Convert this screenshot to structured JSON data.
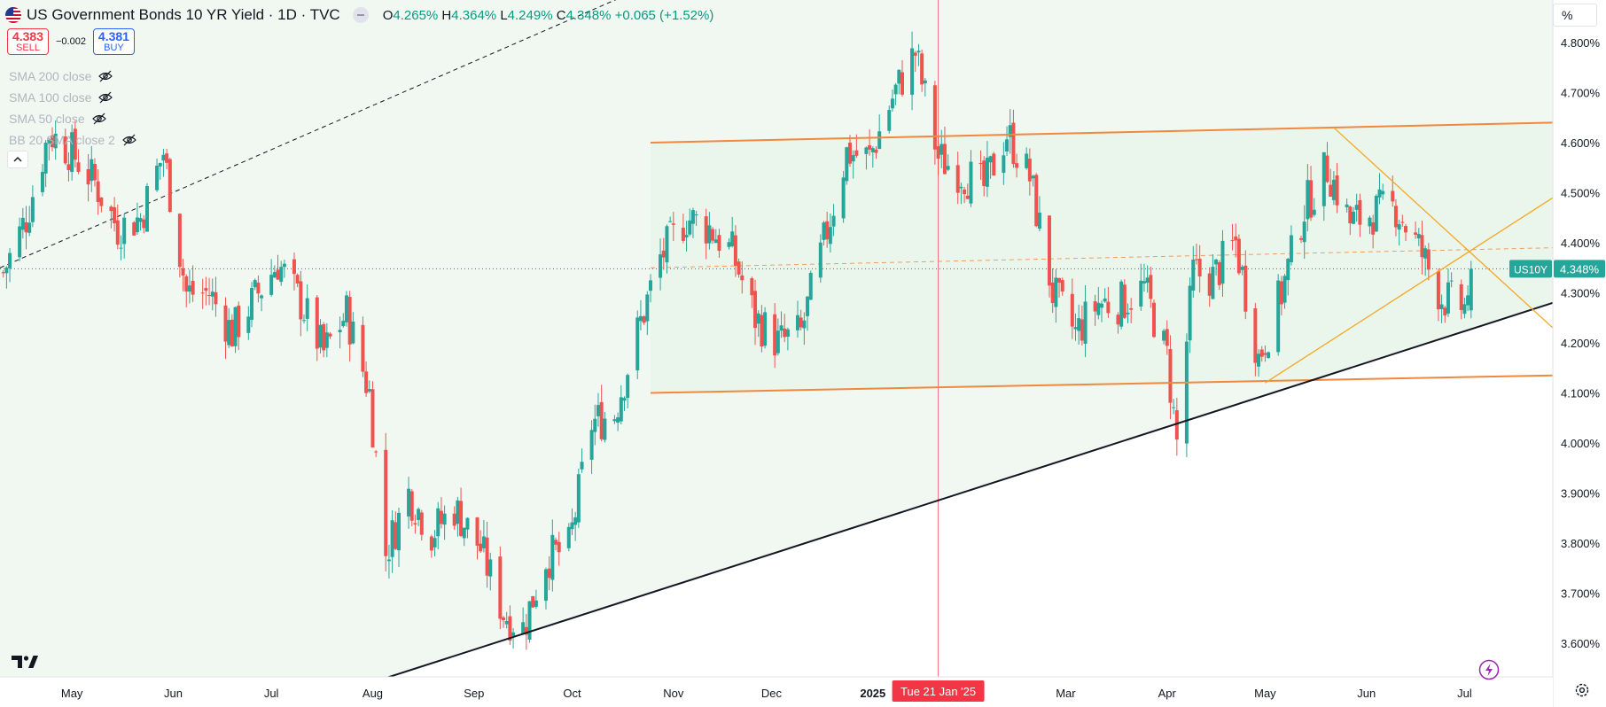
{
  "header": {
    "title": "US Government Bonds 10 YR Yield · 1D · TVC",
    "ohlc": [
      {
        "key": "O",
        "value": "4.265%"
      },
      {
        "key": "H",
        "value": "4.364%"
      },
      {
        "key": "L",
        "value": "4.249%"
      },
      {
        "key": "C",
        "value": "4.348%"
      }
    ],
    "change": "+0.065 (+1.52%)"
  },
  "trade": {
    "sell_price": "4.383",
    "sell_label": "SELL",
    "spread": "−0.002",
    "buy_price": "4.381",
    "buy_label": "BUY"
  },
  "indicators": [
    {
      "label": "SMA 200 close"
    },
    {
      "label": "SMA 100 close"
    },
    {
      "label": "SMA 50 close"
    },
    {
      "label": "BB 20 SMA close 2"
    }
  ],
  "price_scale": {
    "unit": "%"
  },
  "last_price": {
    "symbol": "US10Y",
    "value": "4.348%"
  },
  "crosshair": {
    "date_label": "Tue 21 Jan '25"
  },
  "colors": {
    "up": "#26a69a",
    "down": "#ef5350",
    "channel_line": "#f0883e",
    "channel_fill": "#f1f8f2",
    "support_line": "#131722",
    "crosshair": "#f23645",
    "last_price_bg": "#26a69a",
    "mid_dashed": "#f0883e"
  },
  "icons": {
    "flag": "us-flag-icon",
    "eye": "eye-off-icon",
    "collapse": "chevron-up-icon",
    "logo": "tradingview-logo-icon",
    "bolt": "lightning-icon",
    "settings": "gear-icon"
  },
  "chart_data": {
    "type": "candlestick",
    "y_axis_ticks": [
      "4.800%",
      "4.700%",
      "4.600%",
      "4.500%",
      "4.400%",
      "4.300%",
      "4.200%",
      "4.100%",
      "4.000%",
      "3.900%",
      "3.800%",
      "3.700%",
      "3.600%"
    ],
    "ylim": [
      3.55,
      4.85
    ],
    "x_axis_labels": [
      {
        "label": "May",
        "date": "2024-05-01"
      },
      {
        "label": "Jun",
        "date": "2024-06-01"
      },
      {
        "label": "Jul",
        "date": "2024-07-01"
      },
      {
        "label": "Aug",
        "date": "2024-08-01"
      },
      {
        "label": "Sep",
        "date": "2024-09-01"
      },
      {
        "label": "Oct",
        "date": "2024-10-01"
      },
      {
        "label": "Nov",
        "date": "2024-11-01"
      },
      {
        "label": "Dec",
        "date": "2024-12-01"
      },
      {
        "label": "2025",
        "date": "2025-01-01"
      },
      {
        "label": "Feb",
        "date": "2025-02-01"
      },
      {
        "label": "Mar",
        "date": "2025-03-01"
      },
      {
        "label": "Apr",
        "date": "2025-04-01"
      },
      {
        "label": "May",
        "date": "2025-05-01"
      },
      {
        "label": "Jun",
        "date": "2025-06-01"
      },
      {
        "label": "Jul",
        "date": "2025-07-01"
      }
    ],
    "x_range": [
      "2024-04-09",
      "2025-07-28"
    ],
    "closes": [
      {
        "date": "2024-04-10",
        "close": 4.34
      },
      {
        "date": "2024-04-17",
        "close": 4.45
      },
      {
        "date": "2024-04-24",
        "close": 4.62
      },
      {
        "date": "2024-05-01",
        "close": 4.58
      },
      {
        "date": "2024-05-08",
        "close": 4.52
      },
      {
        "date": "2024-05-15",
        "close": 4.43
      },
      {
        "date": "2024-05-22",
        "close": 4.45
      },
      {
        "date": "2024-05-29",
        "close": 4.58
      },
      {
        "date": "2024-06-05",
        "close": 4.3
      },
      {
        "date": "2024-06-12",
        "close": 4.3
      },
      {
        "date": "2024-06-19",
        "close": 4.22
      },
      {
        "date": "2024-06-26",
        "close": 4.29
      },
      {
        "date": "2024-07-03",
        "close": 4.36
      },
      {
        "date": "2024-07-10",
        "close": 4.28
      },
      {
        "date": "2024-07-17",
        "close": 4.18
      },
      {
        "date": "2024-07-24",
        "close": 4.26
      },
      {
        "date": "2024-07-31",
        "close": 4.1
      },
      {
        "date": "2024-08-05",
        "close": 3.78
      },
      {
        "date": "2024-08-12",
        "close": 3.9
      },
      {
        "date": "2024-08-19",
        "close": 3.82
      },
      {
        "date": "2024-08-26",
        "close": 3.87
      },
      {
        "date": "2024-09-03",
        "close": 3.79
      },
      {
        "date": "2024-09-10",
        "close": 3.66
      },
      {
        "date": "2024-09-16",
        "close": 3.63
      },
      {
        "date": "2024-09-23",
        "close": 3.77
      },
      {
        "date": "2024-09-30",
        "close": 3.79
      },
      {
        "date": "2024-10-07",
        "close": 4.04
      },
      {
        "date": "2024-10-14",
        "close": 4.06
      },
      {
        "date": "2024-10-21",
        "close": 4.22
      },
      {
        "date": "2024-10-28",
        "close": 4.37
      },
      {
        "date": "2024-11-05",
        "close": 4.45
      },
      {
        "date": "2024-11-12",
        "close": 4.43
      },
      {
        "date": "2024-11-19",
        "close": 4.38
      },
      {
        "date": "2024-11-26",
        "close": 4.25
      },
      {
        "date": "2024-12-03",
        "close": 4.2
      },
      {
        "date": "2024-12-10",
        "close": 4.22
      },
      {
        "date": "2024-12-17",
        "close": 4.4
      },
      {
        "date": "2024-12-24",
        "close": 4.58
      },
      {
        "date": "2024-12-31",
        "close": 4.57
      },
      {
        "date": "2025-01-07",
        "close": 4.69
      },
      {
        "date": "2025-01-14",
        "close": 4.78
      },
      {
        "date": "2025-01-21",
        "close": 4.57
      },
      {
        "date": "2025-01-28",
        "close": 4.54
      },
      {
        "date": "2025-02-04",
        "close": 4.51
      },
      {
        "date": "2025-02-11",
        "close": 4.62
      },
      {
        "date": "2025-02-18",
        "close": 4.53
      },
      {
        "date": "2025-02-25",
        "close": 4.3
      },
      {
        "date": "2025-03-04",
        "close": 4.22
      },
      {
        "date": "2025-03-11",
        "close": 4.28
      },
      {
        "date": "2025-03-18",
        "close": 4.28
      },
      {
        "date": "2025-03-25",
        "close": 4.31
      },
      {
        "date": "2025-04-01",
        "close": 4.17
      },
      {
        "date": "2025-04-04",
        "close": 4.0
      },
      {
        "date": "2025-04-09",
        "close": 4.34
      },
      {
        "date": "2025-04-15",
        "close": 4.33
      },
      {
        "date": "2025-04-22",
        "close": 4.4
      },
      {
        "date": "2025-04-29",
        "close": 4.17
      },
      {
        "date": "2025-05-06",
        "close": 4.3
      },
      {
        "date": "2025-05-13",
        "close": 4.47
      },
      {
        "date": "2025-05-20",
        "close": 4.55
      },
      {
        "date": "2025-05-27",
        "close": 4.44
      },
      {
        "date": "2025-06-03",
        "close": 4.46
      },
      {
        "date": "2025-06-10",
        "close": 4.47
      },
      {
        "date": "2025-06-17",
        "close": 4.39
      },
      {
        "date": "2025-06-24",
        "close": 4.29
      },
      {
        "date": "2025-07-01",
        "close": 4.27
      },
      {
        "date": "2025-07-03",
        "close": 4.348
      }
    ],
    "channel": {
      "upper": {
        "start": "2024-10-25",
        "start_value": 4.6,
        "end": "2025-07-28",
        "end_value": 4.64
      },
      "lower": {
        "start": "2024-10-25",
        "start_value": 4.1,
        "end": "2025-07-28",
        "end_value": 4.135
      }
    },
    "support_line": {
      "start": "2024-07-31",
      "start_value": 3.52,
      "end": "2025-07-28",
      "end_value": 4.28
    },
    "dashed_trend": {
      "start": "2024-04-09",
      "start_value": 4.35,
      "end": "2024-10-30",
      "end_value": 4.93
    },
    "last_price_line": 4.348,
    "mid_dashed_line": {
      "start": "2024-10-25",
      "start_value": 4.35,
      "end": "2025-07-28",
      "end_value": 4.39
    },
    "triangle": {
      "down_line": {
        "start": "2025-05-22",
        "start_value": 4.63,
        "end": "2025-07-28",
        "end_value": 4.23
      },
      "up_line": {
        "start": "2025-05-01",
        "start_value": 4.12,
        "end": "2025-07-28",
        "end_value": 4.49
      }
    },
    "crosshair_date": "2025-01-21",
    "grid": false
  }
}
